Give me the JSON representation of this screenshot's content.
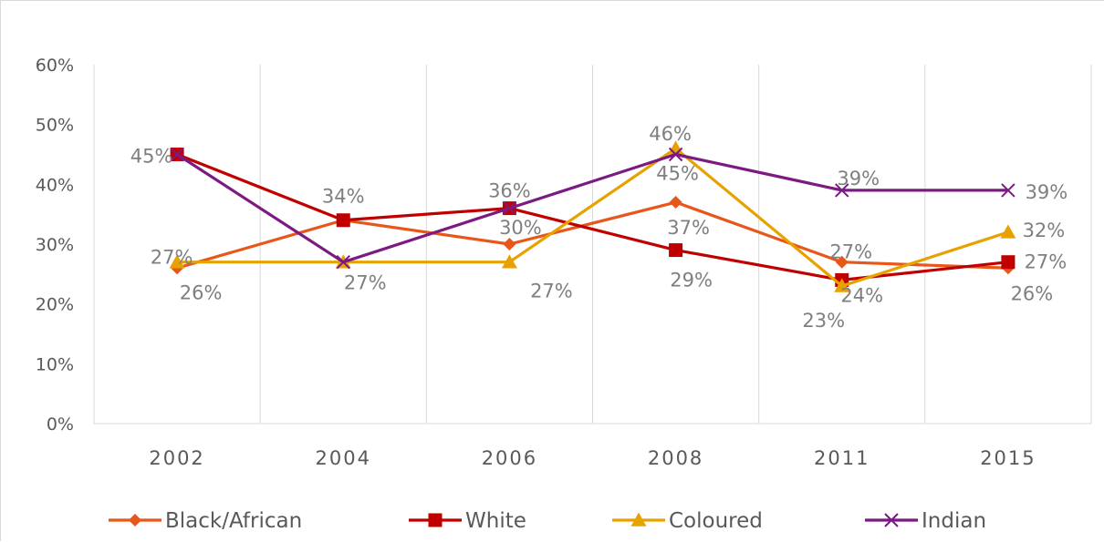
{
  "chart_data": {
    "type": "line",
    "title": "",
    "xlabel": "",
    "ylabel": "",
    "categories": [
      "2002",
      "2004",
      "2006",
      "2008",
      "2011",
      "2015"
    ],
    "ylim": [
      0,
      60
    ],
    "y_ticks": [
      "0%",
      "10%",
      "20%",
      "30%",
      "40%",
      "50%",
      "60%"
    ],
    "grid": "vertical",
    "legend_position": "bottom",
    "series": [
      {
        "name": "Black/African",
        "color": "#e8561a",
        "marker": "diamond",
        "values": [
          26,
          34,
          30,
          37,
          27,
          26
        ],
        "labels": [
          "26%",
          "",
          "30%",
          "37%",
          "27%",
          "26%"
        ]
      },
      {
        "name": "White",
        "color": "#c00000",
        "marker": "square",
        "values": [
          45,
          34,
          36,
          29,
          24,
          27
        ],
        "labels": [
          "45%",
          "34%",
          "36%",
          "29%",
          "24%",
          "27%"
        ]
      },
      {
        "name": "Coloured",
        "color": "#e8a200",
        "marker": "triangle",
        "values": [
          27,
          27,
          27,
          46,
          23,
          32
        ],
        "labels": [
          "27%",
          "",
          "27%",
          "46%",
          "23%",
          "32%"
        ]
      },
      {
        "name": "Indian",
        "color": "#7b1a82",
        "marker": "x",
        "values": [
          45,
          27,
          36,
          45,
          39,
          39
        ],
        "labels": [
          "",
          "27%",
          "",
          "45%",
          "39%",
          "39%"
        ]
      }
    ]
  }
}
